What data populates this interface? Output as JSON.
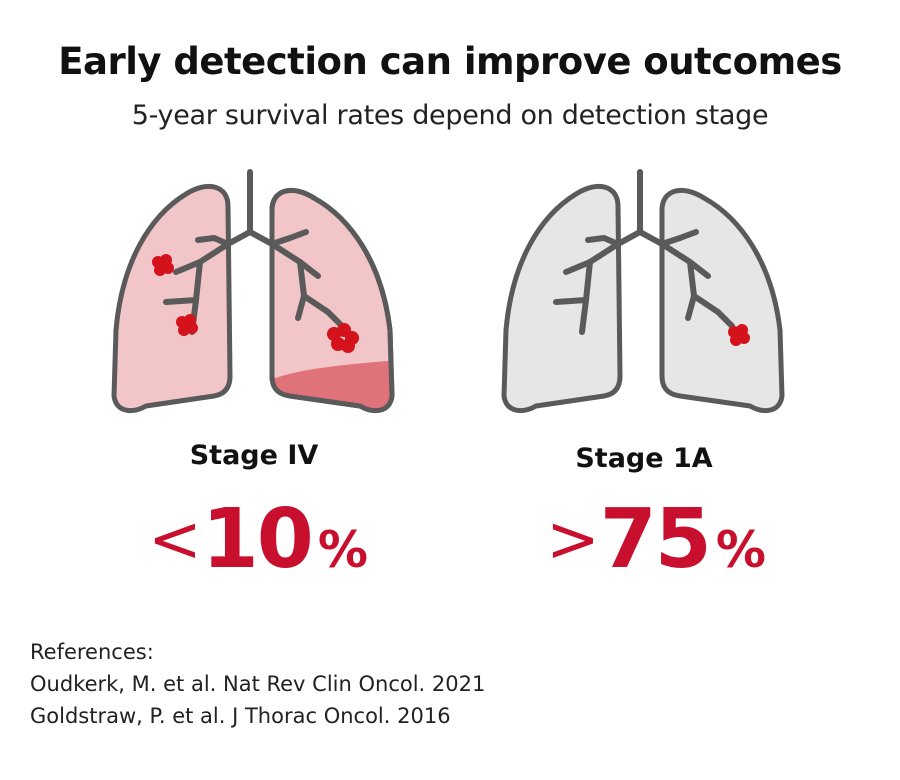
{
  "title": "Early detection can improve outcomes",
  "subtitle": "5-year survival rates depend on detection stage",
  "stages": [
    {
      "label": "Stage IV",
      "comparator": "<",
      "value": "10",
      "unit": "%",
      "lung_fill": "#f2c6c8",
      "tumor_count": 3,
      "has_effusion": true
    },
    {
      "label": "Stage 1A",
      "comparator": ">",
      "value": "75",
      "unit": "%",
      "lung_fill": "#e6e6e6",
      "tumor_count": 1,
      "has_effusion": false
    }
  ],
  "references": {
    "heading": "References:",
    "items": [
      "Oudkerk, M. et al. Nat Rev Clin Oncol. 2021",
      "Goldstraw, P. et al. J Thorac Oncol. 2016"
    ]
  },
  "colors": {
    "accent": "#c8102e",
    "tumor": "#d3121b",
    "outline": "#5a5a5a",
    "effusion": "#e0737a"
  },
  "icons": [
    "lungs-advanced-icon",
    "lungs-early-icon",
    "tumor-icon"
  ]
}
